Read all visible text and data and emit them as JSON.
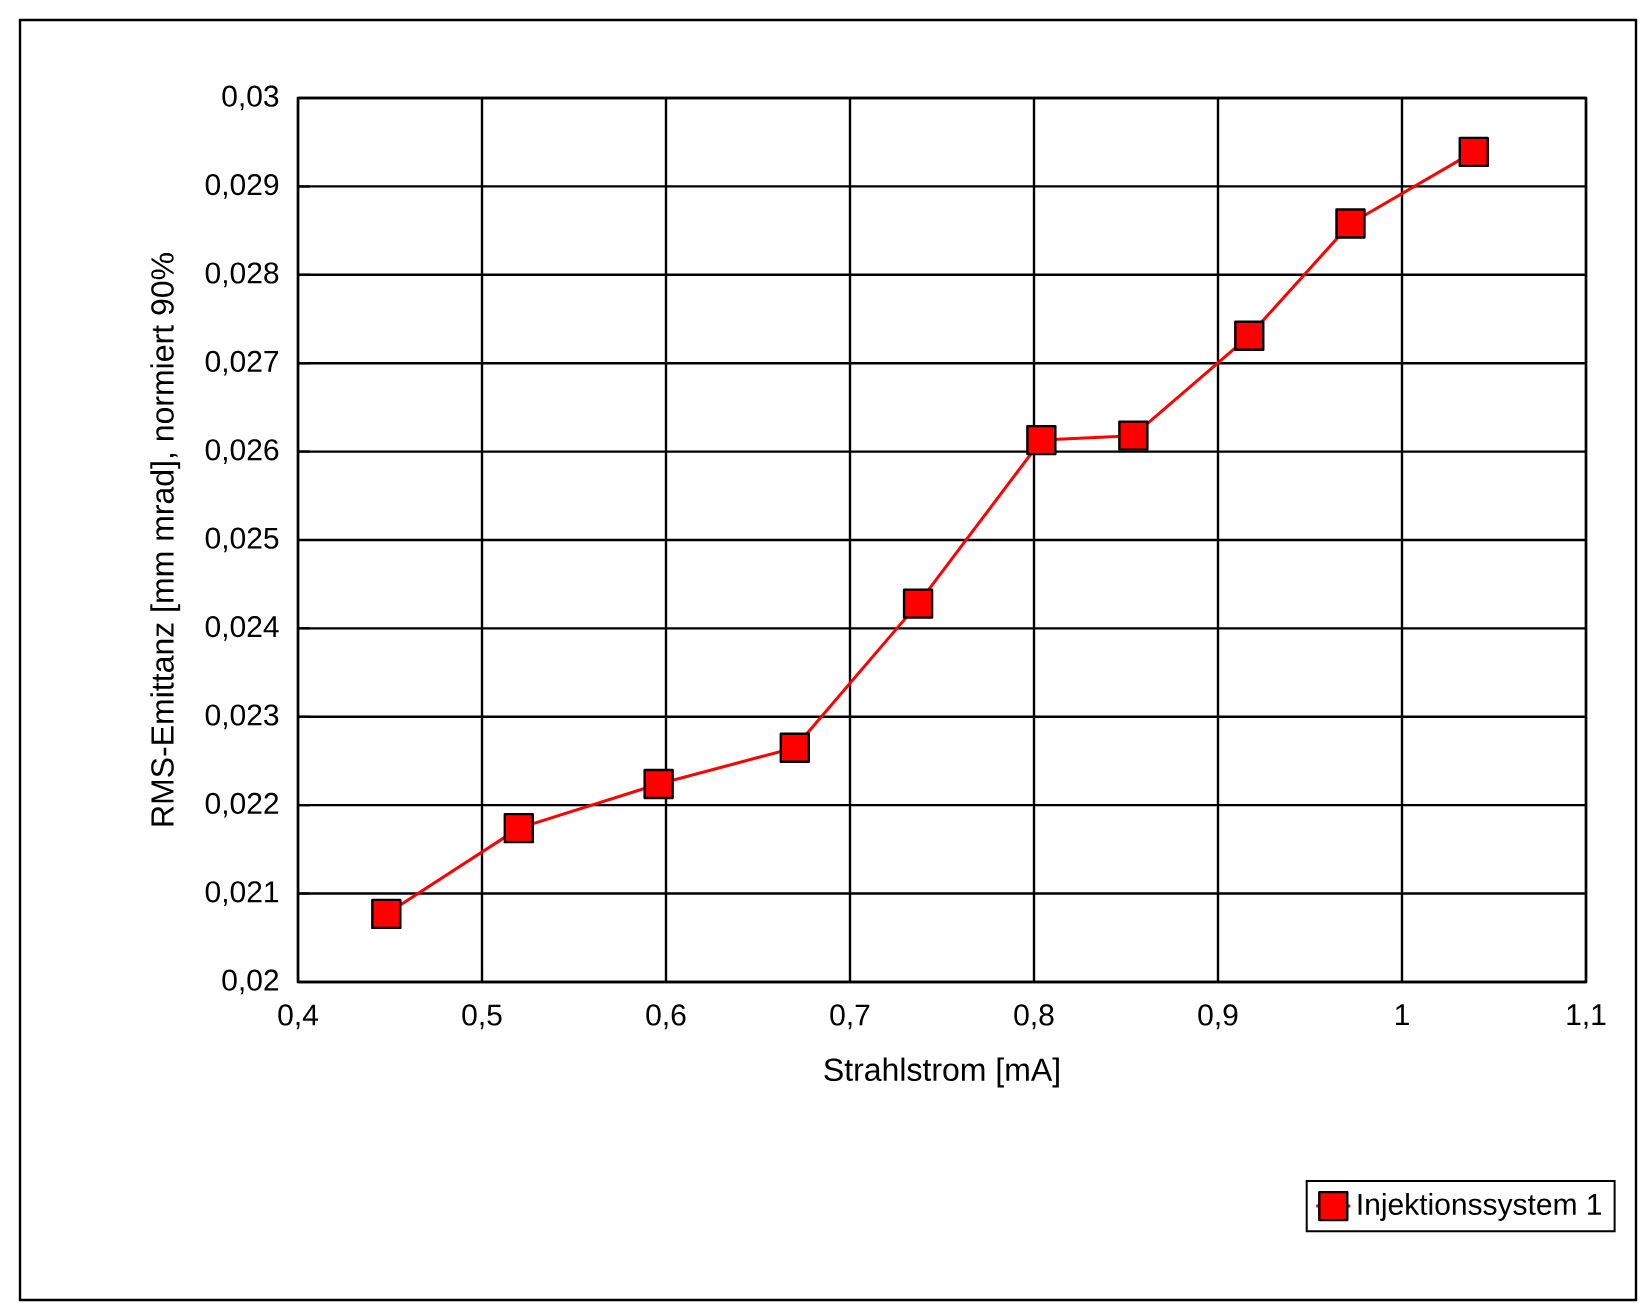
{
  "chart_data": {
    "type": "line",
    "xlabel": "Strahlstrom [mA]",
    "ylabel": "RMS-Emittanz [mm mrad], normiert 90%",
    "x": [
      0.448,
      0.52,
      0.596,
      0.67,
      0.737,
      0.804,
      0.854,
      0.917,
      0.972,
      1.039
    ],
    "series": [
      {
        "name": "Injektionssystem 1",
        "color": "#ff0000",
        "values": [
          0.02077,
          0.02174,
          0.02224,
          0.02265,
          0.02428,
          0.02613,
          0.02618,
          0.02731,
          0.02858,
          0.02939
        ]
      }
    ],
    "xlim": [
      0.4,
      1.1
    ],
    "xticks": [
      {
        "value": 0.4,
        "label": "0,4"
      },
      {
        "value": 0.5,
        "label": "0,5"
      },
      {
        "value": 0.6,
        "label": "0,6"
      },
      {
        "value": 0.7,
        "label": "0,7"
      },
      {
        "value": 0.8,
        "label": "0,8"
      },
      {
        "value": 0.9,
        "label": "0,9"
      },
      1,
      {
        "value": 1.1,
        "label": "1,1"
      }
    ],
    "ylim": [
      0.02,
      0.03
    ],
    "yticks": [
      {
        "value": 0.02,
        "label": "0,02"
      },
      {
        "value": 0.021,
        "label": "0,021"
      },
      {
        "value": 0.022,
        "label": "0,022"
      },
      {
        "value": 0.023,
        "label": "0,023"
      },
      {
        "value": 0.024,
        "label": "0,024"
      },
      {
        "value": 0.025,
        "label": "0,025"
      },
      {
        "value": 0.026,
        "label": "0,026"
      },
      {
        "value": 0.027,
        "label": "0,027"
      },
      {
        "value": 0.028,
        "label": "0,028"
      },
      {
        "value": 0.029,
        "label": "0,029"
      },
      {
        "value": 0.03,
        "label": "0,03"
      }
    ],
    "grid": true,
    "legend": "bottom right",
    "marker": "square",
    "line_style": "solid"
  }
}
